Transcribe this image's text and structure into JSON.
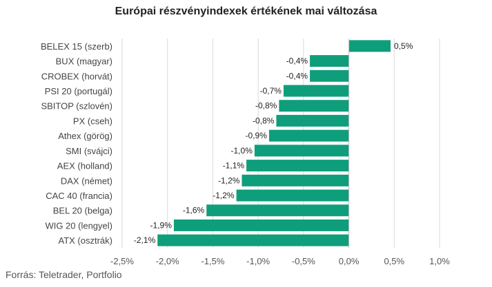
{
  "header": {
    "title": "Európai részvényindexek értékének mai változása"
  },
  "footer": {
    "source": "Forrás: Teletrader, Portfolio"
  },
  "colors": {
    "bar": "#0f9e7b",
    "grid": "#d9d9d9",
    "axis": "#bfbfbf",
    "text": "#444444"
  },
  "chart_data": {
    "type": "bar",
    "orientation": "horizontal",
    "title": "Európai részvényindexek értékének mai változása",
    "xlabel": "",
    "ylabel": "",
    "xlim": [
      -2.5,
      1.0
    ],
    "grid": true,
    "categories": [
      "BELEX 15 (szerb)",
      "BUX (magyar)",
      "CROBEX (horvát)",
      "PSI 20 (portugál)",
      "SBITOP (szlovén)",
      "PX (cseh)",
      "Athex (görög)",
      "SMI (svájci)",
      "AEX (holland)",
      "DAX (német)",
      "CAC 40 (francia)",
      "BEL 20 (belga)",
      "WIG 20 (lengyel)",
      "ATX (osztrák)"
    ],
    "values": [
      0.46,
      -0.43,
      -0.43,
      -0.72,
      -0.77,
      -0.8,
      -0.88,
      -1.04,
      -1.13,
      -1.18,
      -1.24,
      -1.57,
      -1.93,
      -2.11
    ],
    "value_labels": [
      "0,5%",
      "-0,4%",
      "-0,4%",
      "-0,7%",
      "-0,8%",
      "-0,8%",
      "-0,9%",
      "-1,0%",
      "-1,1%",
      "-1,2%",
      "-1,2%",
      "-1,6%",
      "-1,9%",
      "-2,1%"
    ],
    "ticks": [
      -2.5,
      -2.0,
      -1.5,
      -1.0,
      -0.5,
      0.0,
      0.5,
      1.0
    ],
    "tick_labels": [
      "-2,5%",
      "-2,0%",
      "-1,5%",
      "-1,0%",
      "-0,5%",
      "0,0%",
      "0,5%",
      "1,0%"
    ]
  }
}
